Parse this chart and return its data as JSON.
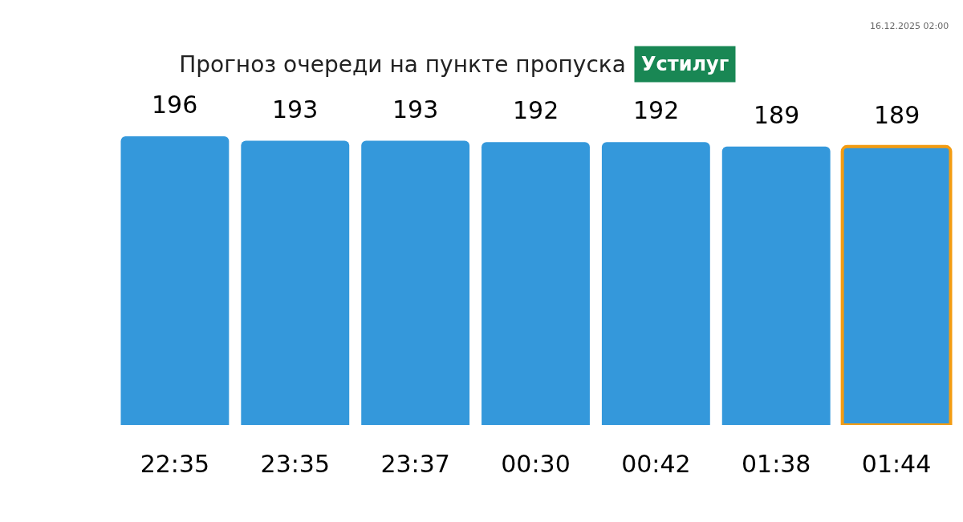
{
  "chart_data": {
    "type": "bar",
    "title": "Прогноз очереди на пункте пропуска",
    "subtitle": "Устилуг",
    "categories": [
      "22:35",
      "23:35",
      "23:37",
      "00:30",
      "00:42",
      "01:38",
      "01:44"
    ],
    "values": [
      196,
      193,
      193,
      192,
      192,
      189,
      189
    ],
    "color": "#3498db",
    "data_labels": true,
    "annotations": [
      "16.12.2025 02:00"
    ]
  }
}
